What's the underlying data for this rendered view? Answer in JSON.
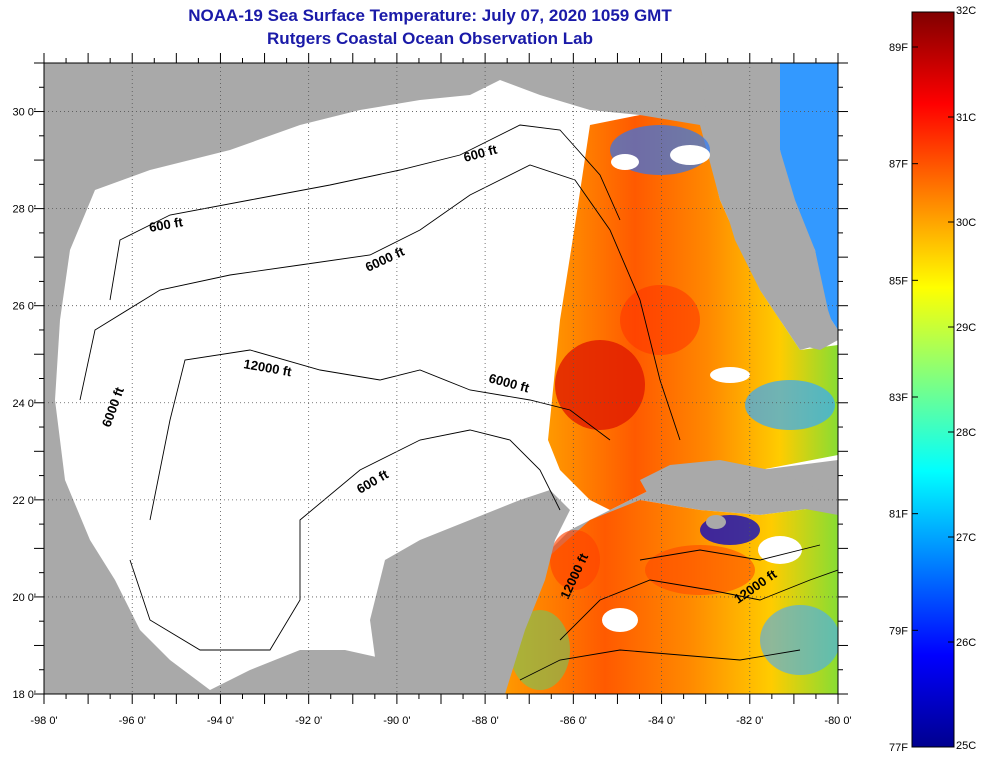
{
  "title": "NOAA-19 Sea Surface Temperature:  July 07, 2020 1059 GMT",
  "subtitle": "Rutgers Coastal Ocean Observation Lab",
  "map": {
    "lon_min": -98,
    "lon_max": -80,
    "lat_min": 18,
    "lat_max": 31,
    "lon_ticks": [
      "-98 0'",
      "-96 0'",
      "-94 0'",
      "-92 0'",
      "-90 0'",
      "-88 0'",
      "-86 0'",
      "-84 0'",
      "-82 0'",
      "-80 0'"
    ],
    "lat_ticks": [
      "18 0'",
      "20 0'",
      "22 0'",
      "24 0'",
      "26 0'",
      "28 0'",
      "30 0'"
    ],
    "land_color": "#a9a9a9",
    "no_data_color": "#ffffff",
    "contour_labels": [
      "600 ft",
      "600 ft",
      "6000 ft",
      "6000 ft",
      "6000 ft",
      "12000 ft",
      "600 ft",
      "12000 ft",
      "12000 ft"
    ]
  },
  "colorbar": {
    "celsius": [
      "25C",
      "26C",
      "27C",
      "28C",
      "29C",
      "30C",
      "31C",
      "32C"
    ],
    "fahrenheit": [
      "77F",
      "79F",
      "81F",
      "83F",
      "85F",
      "87F",
      "89F"
    ],
    "colors": [
      "#00008f",
      "#0000ff",
      "#0080ff",
      "#00ffff",
      "#80ff80",
      "#ffff00",
      "#ff8000",
      "#ff0000",
      "#800000"
    ]
  }
}
